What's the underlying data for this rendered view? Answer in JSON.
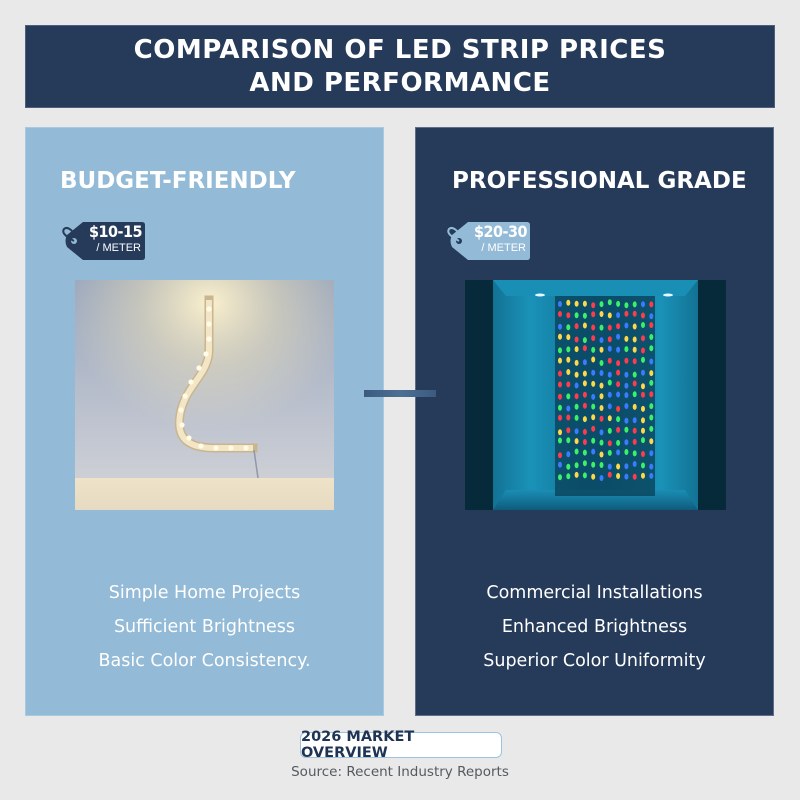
{
  "header": {
    "title_line1": "COMPARISON OF LED STRIP PRICES",
    "title_line2": "AND PERFORMANCE"
  },
  "panels": [
    {
      "id": "budget",
      "title": "BUDGET-FRIENDLY",
      "price": "$10-15",
      "unit": "/ METER",
      "image_description": "Warm white flexible LED strip curved on a wall",
      "bullets": [
        "Simple Home Projects",
        "Sufficient Brightness",
        "Basic Color Consistency."
      ],
      "colors": {
        "background": "#93bad6",
        "tag": "#263a5a"
      }
    },
    {
      "id": "professional",
      "title": "PROFESSIONAL GRADE",
      "price": "$20-30",
      "unit": "/ METER",
      "image_description": "Multicolor RGB LED curtain in a teal-lit alcove",
      "bullets": [
        "Commercial Installations",
        "Enhanced Brightness",
        "Superior Color Uniformity"
      ],
      "colors": {
        "background": "#263a5a",
        "tag": "#93bad6"
      }
    }
  ],
  "footer": {
    "badge": "2026 MARKET OVERVIEW",
    "source": "Source: Recent Industry Reports"
  }
}
